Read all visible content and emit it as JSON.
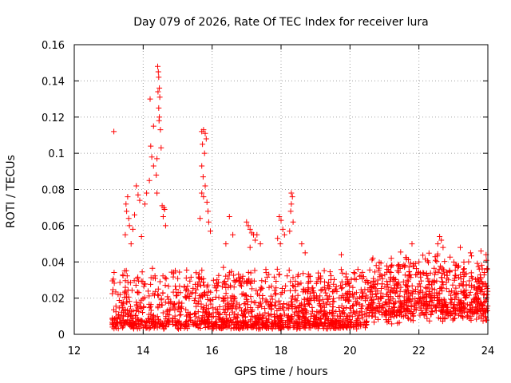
{
  "colors": {
    "series": "#ff0000",
    "text": "#000000",
    "grid": "#a0a0a0"
  },
  "chart_data": {
    "type": "scatter",
    "title": "Day 079 of 2026, Rate Of TEC Index for receiver lura",
    "xlabel": "GPS time / hours",
    "ylabel": "ROTI / TECUs",
    "xlim": [
      12,
      24
    ],
    "ylim": [
      0,
      0.16
    ],
    "xticks": [
      "12",
      "14",
      "16",
      "18",
      "20",
      "22",
      "24"
    ],
    "yticks": [
      "0",
      "0.02",
      "0.04",
      "0.06",
      "0.08",
      "0.1",
      "0.12",
      "0.14",
      "0.16"
    ],
    "grid": true,
    "legend": "none",
    "marker": "+",
    "series": [
      {
        "name": "ROTI",
        "points": [
          [
            13.15,
            0.112
          ],
          [
            14.2,
            0.13
          ],
          [
            14.3,
            0.115
          ],
          [
            14.22,
            0.104
          ],
          [
            14.25,
            0.098
          ],
          [
            14.3,
            0.093
          ],
          [
            14.18,
            0.085
          ],
          [
            14.1,
            0.078
          ],
          [
            14.05,
            0.072
          ],
          [
            14.42,
            0.148
          ],
          [
            14.44,
            0.145
          ],
          [
            14.45,
            0.142
          ],
          [
            14.47,
            0.136
          ],
          [
            14.43,
            0.134
          ],
          [
            14.48,
            0.131
          ],
          [
            14.45,
            0.125
          ],
          [
            14.47,
            0.12
          ],
          [
            14.46,
            0.118
          ],
          [
            14.5,
            0.113
          ],
          [
            14.52,
            0.103
          ],
          [
            14.4,
            0.097
          ],
          [
            14.38,
            0.088
          ],
          [
            14.4,
            0.078
          ],
          [
            14.55,
            0.071
          ],
          [
            14.6,
            0.07
          ],
          [
            14.62,
            0.069
          ],
          [
            14.58,
            0.065
          ],
          [
            14.65,
            0.06
          ],
          [
            13.55,
            0.076
          ],
          [
            13.5,
            0.072
          ],
          [
            13.52,
            0.068
          ],
          [
            13.58,
            0.064
          ],
          [
            13.6,
            0.06
          ],
          [
            13.48,
            0.055
          ],
          [
            13.65,
            0.05
          ],
          [
            13.8,
            0.082
          ],
          [
            13.85,
            0.077
          ],
          [
            13.9,
            0.074
          ],
          [
            13.75,
            0.066
          ],
          [
            13.7,
            0.058
          ],
          [
            13.95,
            0.054
          ],
          [
            15.7,
            0.112
          ],
          [
            15.75,
            0.113
          ],
          [
            15.8,
            0.111
          ],
          [
            15.83,
            0.108
          ],
          [
            15.72,
            0.105
          ],
          [
            15.78,
            0.1
          ],
          [
            15.7,
            0.093
          ],
          [
            15.74,
            0.087
          ],
          [
            15.8,
            0.082
          ],
          [
            15.7,
            0.078
          ],
          [
            15.75,
            0.076
          ],
          [
            15.85,
            0.073
          ],
          [
            15.88,
            0.068
          ],
          [
            15.9,
            0.062
          ],
          [
            15.65,
            0.064
          ],
          [
            15.95,
            0.057
          ],
          [
            16.5,
            0.065
          ],
          [
            16.6,
            0.055
          ],
          [
            16.4,
            0.05
          ],
          [
            17.0,
            0.062
          ],
          [
            17.05,
            0.06
          ],
          [
            17.1,
            0.058
          ],
          [
            17.15,
            0.056
          ],
          [
            17.2,
            0.055
          ],
          [
            17.3,
            0.055
          ],
          [
            17.25,
            0.052
          ],
          [
            17.4,
            0.05
          ],
          [
            17.1,
            0.048
          ],
          [
            17.95,
            0.065
          ],
          [
            18.0,
            0.063
          ],
          [
            18.05,
            0.058
          ],
          [
            18.1,
            0.055
          ],
          [
            17.9,
            0.053
          ],
          [
            17.98,
            0.05
          ],
          [
            18.3,
            0.078
          ],
          [
            18.33,
            0.076
          ],
          [
            18.3,
            0.072
          ],
          [
            18.28,
            0.068
          ],
          [
            18.35,
            0.062
          ],
          [
            18.25,
            0.057
          ],
          [
            18.6,
            0.05
          ],
          [
            18.7,
            0.045
          ],
          [
            19.75,
            0.044
          ],
          [
            22.6,
            0.054
          ],
          [
            22.65,
            0.052
          ],
          [
            22.55,
            0.05
          ],
          [
            22.7,
            0.048
          ],
          [
            21.8,
            0.05
          ],
          [
            21.2,
            0.042
          ],
          [
            23.2,
            0.048
          ],
          [
            23.5,
            0.045
          ],
          [
            23.8,
            0.046
          ],
          [
            23.95,
            0.044
          ],
          [
            22.0,
            0.04
          ],
          [
            21.6,
            0.038
          ]
        ],
        "band": {
          "x_start": 13.1,
          "x_end": 24.0,
          "y_floor": 0.004,
          "y_base": 0.012,
          "y_spread": 0.03,
          "count": 2200
        }
      }
    ]
  }
}
